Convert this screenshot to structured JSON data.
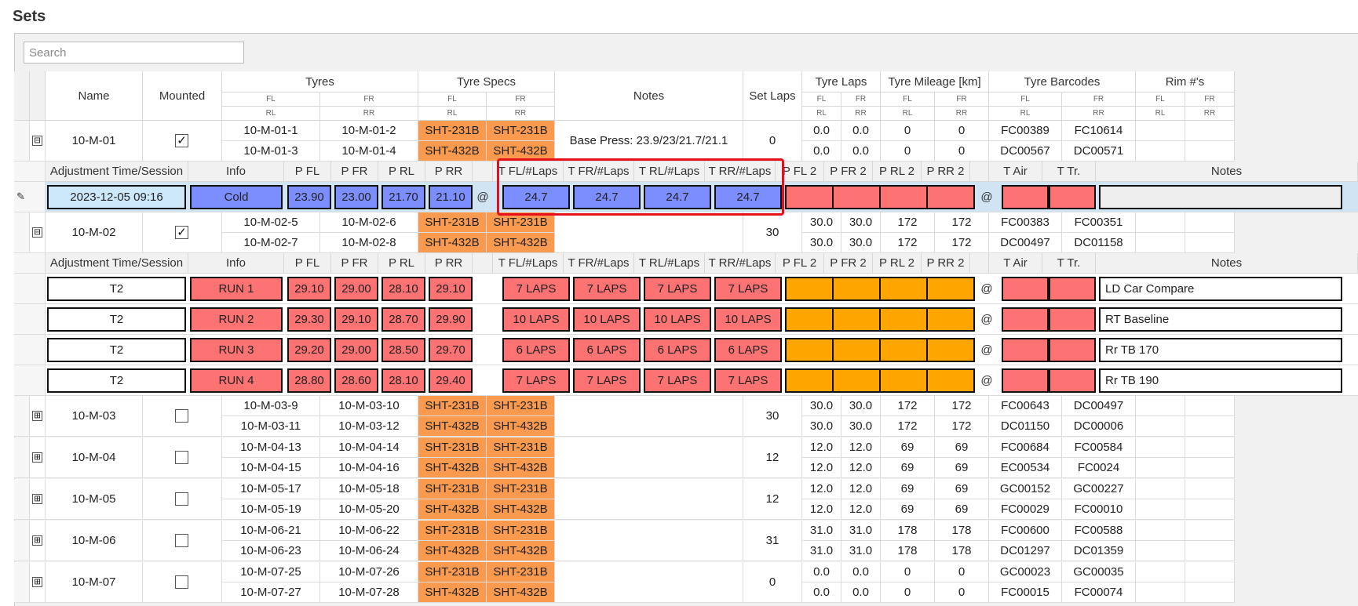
{
  "page_title": "Sets",
  "search": {
    "placeholder": "Search"
  },
  "columns": {
    "name": "Name",
    "mounted": "Mounted",
    "tyres": "Tyres",
    "tyre_specs": "Tyre Specs",
    "notes": "Notes",
    "set_laps": "Set Laps",
    "tyre_laps": "Tyre Laps",
    "tyre_mileage": "Tyre Mileage [km]",
    "tyre_barcodes": "Tyre Barcodes",
    "rims": "Rim #'s",
    "fl": "FL",
    "fr": "FR",
    "rl": "RL",
    "rr": "RR"
  },
  "inner_columns": {
    "time": "Adjustment Time/Session",
    "info": "Info",
    "pfl": "P FL",
    "pfr": "P FR",
    "prl": "P RL",
    "prr": "P RR",
    "tfl": "T FL/#Laps",
    "tfr": "T FR/#Laps",
    "trl": "T RL/#Laps",
    "trr": "T RR/#Laps",
    "pfl2": "P FL 2",
    "pfr2": "P FR 2",
    "prl2": "P RL 2",
    "prr2": "P RR 2",
    "tair": "T Air",
    "ttr": "T Tr.",
    "notes": "Notes"
  },
  "at_symbol": "@",
  "expanded_minus": "⊟",
  "collapsed_plus": "⊞",
  "check_mark": "✓",
  "sets": [
    {
      "name": "10-M-01",
      "mounted": true,
      "tyres": [
        "10-M-01-1",
        "10-M-01-2",
        "10-M-01-3",
        "10-M-01-4"
      ],
      "specs": [
        "SHT-231B",
        "SHT-231B",
        "SHT-432B",
        "SHT-432B"
      ],
      "notes": "Base Press: 23.9/23/21.7/21.1",
      "set_laps": "0",
      "tyre_laps": [
        "0.0",
        "0.0",
        "0.0",
        "0.0"
      ],
      "mileage": [
        "0",
        "0",
        "0",
        "0"
      ],
      "barcodes": [
        "FC00389",
        "FC10614",
        "DC00567",
        "DC00571"
      ]
    },
    {
      "name": "10-M-02",
      "mounted": true,
      "tyres": [
        "10-M-02-5",
        "10-M-02-6",
        "10-M-02-7",
        "10-M-02-8"
      ],
      "specs": [
        "SHT-231B",
        "SHT-231B",
        "SHT-432B",
        "SHT-432B"
      ],
      "notes": "",
      "set_laps": "30",
      "tyre_laps": [
        "30.0",
        "30.0",
        "30.0",
        "30.0"
      ],
      "mileage": [
        "172",
        "172",
        "172",
        "172"
      ],
      "barcodes": [
        "FC00383",
        "FC00351",
        "DC00497",
        "DC01158"
      ]
    },
    {
      "name": "10-M-03",
      "mounted": false,
      "tyres": [
        "10-M-03-9",
        "10-M-03-10",
        "10-M-03-11",
        "10-M-03-12"
      ],
      "specs": [
        "SHT-231B",
        "SHT-231B",
        "SHT-432B",
        "SHT-432B"
      ],
      "notes": "",
      "set_laps": "30",
      "tyre_laps": [
        "30.0",
        "30.0",
        "30.0",
        "30.0"
      ],
      "mileage": [
        "172",
        "172",
        "172",
        "172"
      ],
      "barcodes": [
        "FC00643",
        "DC00497",
        "DC01150",
        "DC00006"
      ]
    },
    {
      "name": "10-M-04",
      "mounted": false,
      "tyres": [
        "10-M-04-13",
        "10-M-04-14",
        "10-M-04-15",
        "10-M-04-16"
      ],
      "specs": [
        "SHT-231B",
        "SHT-231B",
        "SHT-432B",
        "SHT-432B"
      ],
      "notes": "",
      "set_laps": "12",
      "tyre_laps": [
        "12.0",
        "12.0",
        "12.0",
        "12.0"
      ],
      "mileage": [
        "69",
        "69",
        "69",
        "69"
      ],
      "barcodes": [
        "FC00684",
        "FC00584",
        "EC00534",
        "FC0024"
      ]
    },
    {
      "name": "10-M-05",
      "mounted": false,
      "tyres": [
        "10-M-05-17",
        "10-M-05-18",
        "10-M-05-19",
        "10-M-05-20"
      ],
      "specs": [
        "SHT-231B",
        "SHT-231B",
        "SHT-432B",
        "SHT-432B"
      ],
      "notes": "",
      "set_laps": "12",
      "tyre_laps": [
        "12.0",
        "12.0",
        "12.0",
        "12.0"
      ],
      "mileage": [
        "69",
        "69",
        "69",
        "69"
      ],
      "barcodes": [
        "GC00152",
        "GC00227",
        "FC00029",
        "FC00010"
      ]
    },
    {
      "name": "10-M-06",
      "mounted": false,
      "tyres": [
        "10-M-06-21",
        "10-M-06-22",
        "10-M-06-23",
        "10-M-06-24"
      ],
      "specs": [
        "SHT-231B",
        "SHT-231B",
        "SHT-432B",
        "SHT-432B"
      ],
      "notes": "",
      "set_laps": "31",
      "tyre_laps": [
        "31.0",
        "31.0",
        "31.0",
        "31.0"
      ],
      "mileage": [
        "178",
        "178",
        "178",
        "178"
      ],
      "barcodes": [
        "FC00600",
        "FC00588",
        "DC01297",
        "DC01359"
      ]
    },
    {
      "name": "10-M-07",
      "mounted": false,
      "tyres": [
        "10-M-07-25",
        "10-M-07-26",
        "10-M-07-27",
        "10-M-07-28"
      ],
      "specs": [
        "SHT-231B",
        "SHT-231B",
        "SHT-432B",
        "SHT-432B"
      ],
      "notes": "",
      "set_laps": "0",
      "tyre_laps": [
        "0.0",
        "0.0",
        "0.0",
        "0.0"
      ],
      "mileage": [
        "0",
        "0",
        "0",
        "0"
      ],
      "barcodes": [
        "GC00023",
        "GC00035",
        "FC00015",
        "FC00074"
      ]
    }
  ],
  "set1_adjustment": {
    "time": "2023-12-05 09:16",
    "info": "Cold",
    "p": [
      "23.90",
      "23.00",
      "21.70",
      "21.10"
    ],
    "t": [
      "24.7",
      "24.7",
      "24.7",
      "24.7"
    ]
  },
  "set2_runs": [
    {
      "session": "T2",
      "info": "RUN 1",
      "p": [
        "29.10",
        "29.00",
        "28.10",
        "29.10"
      ],
      "t": [
        "7 LAPS",
        "7 LAPS",
        "7 LAPS",
        "7 LAPS"
      ],
      "notes": "LD Car Compare"
    },
    {
      "session": "T2",
      "info": "RUN 2",
      "p": [
        "29.30",
        "29.10",
        "28.70",
        "29.90"
      ],
      "t": [
        "10 LAPS",
        "10 LAPS",
        "10 LAPS",
        "10 LAPS"
      ],
      "notes": "RT Baseline"
    },
    {
      "session": "T2",
      "info": "RUN 3",
      "p": [
        "29.20",
        "29.00",
        "28.50",
        "29.70"
      ],
      "t": [
        "6 LAPS",
        "6 LAPS",
        "6 LAPS",
        "6 LAPS"
      ],
      "notes": "Rr TB 170"
    },
    {
      "session": "T2",
      "info": "RUN 4",
      "p": [
        "28.80",
        "28.60",
        "28.10",
        "29.40"
      ],
      "t": [
        "7 LAPS",
        "7 LAPS",
        "7 LAPS",
        "7 LAPS"
      ],
      "notes": "Rr TB 190"
    }
  ],
  "colors": {
    "spec_orange": "#f99a4f",
    "run_red": "#fd7272",
    "cold_blue": "#7c8efd",
    "p2_orange": "#ffa500",
    "highlight_red": "#e5101a"
  }
}
